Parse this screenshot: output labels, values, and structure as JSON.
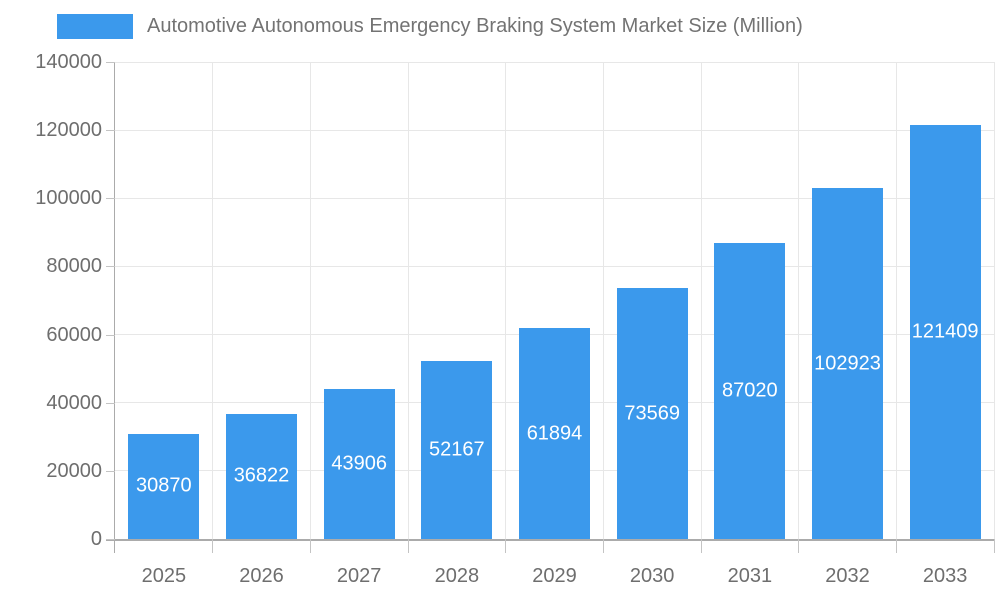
{
  "legend": {
    "label": "Automotive Autonomous Emergency Braking System Market Size (Million)"
  },
  "colors": {
    "bar": "#3b99ec",
    "grid": "#e7e7e7",
    "axis": "#ababab",
    "tick": "#c4c4c4",
    "text": "#6e6e6e",
    "legend_text": "#737373",
    "value_label": "#ffffff",
    "background": "#ffffff"
  },
  "chart_data": {
    "type": "bar",
    "title": "Automotive Autonomous Emergency Braking System Market Size (Million)",
    "categories": [
      "2025",
      "2026",
      "2027",
      "2028",
      "2029",
      "2030",
      "2031",
      "2032",
      "2033"
    ],
    "values": [
      30870,
      36822,
      43906,
      52167,
      61894,
      73569,
      87020,
      102923,
      121409
    ],
    "xlabel": "",
    "ylabel": "",
    "ylim": [
      0,
      140000
    ],
    "yticks": [
      0,
      20000,
      40000,
      60000,
      80000,
      100000,
      120000,
      140000
    ],
    "grid": true,
    "legend_position": "top",
    "bar_labels_visible": true,
    "bar_label_position": "center"
  }
}
